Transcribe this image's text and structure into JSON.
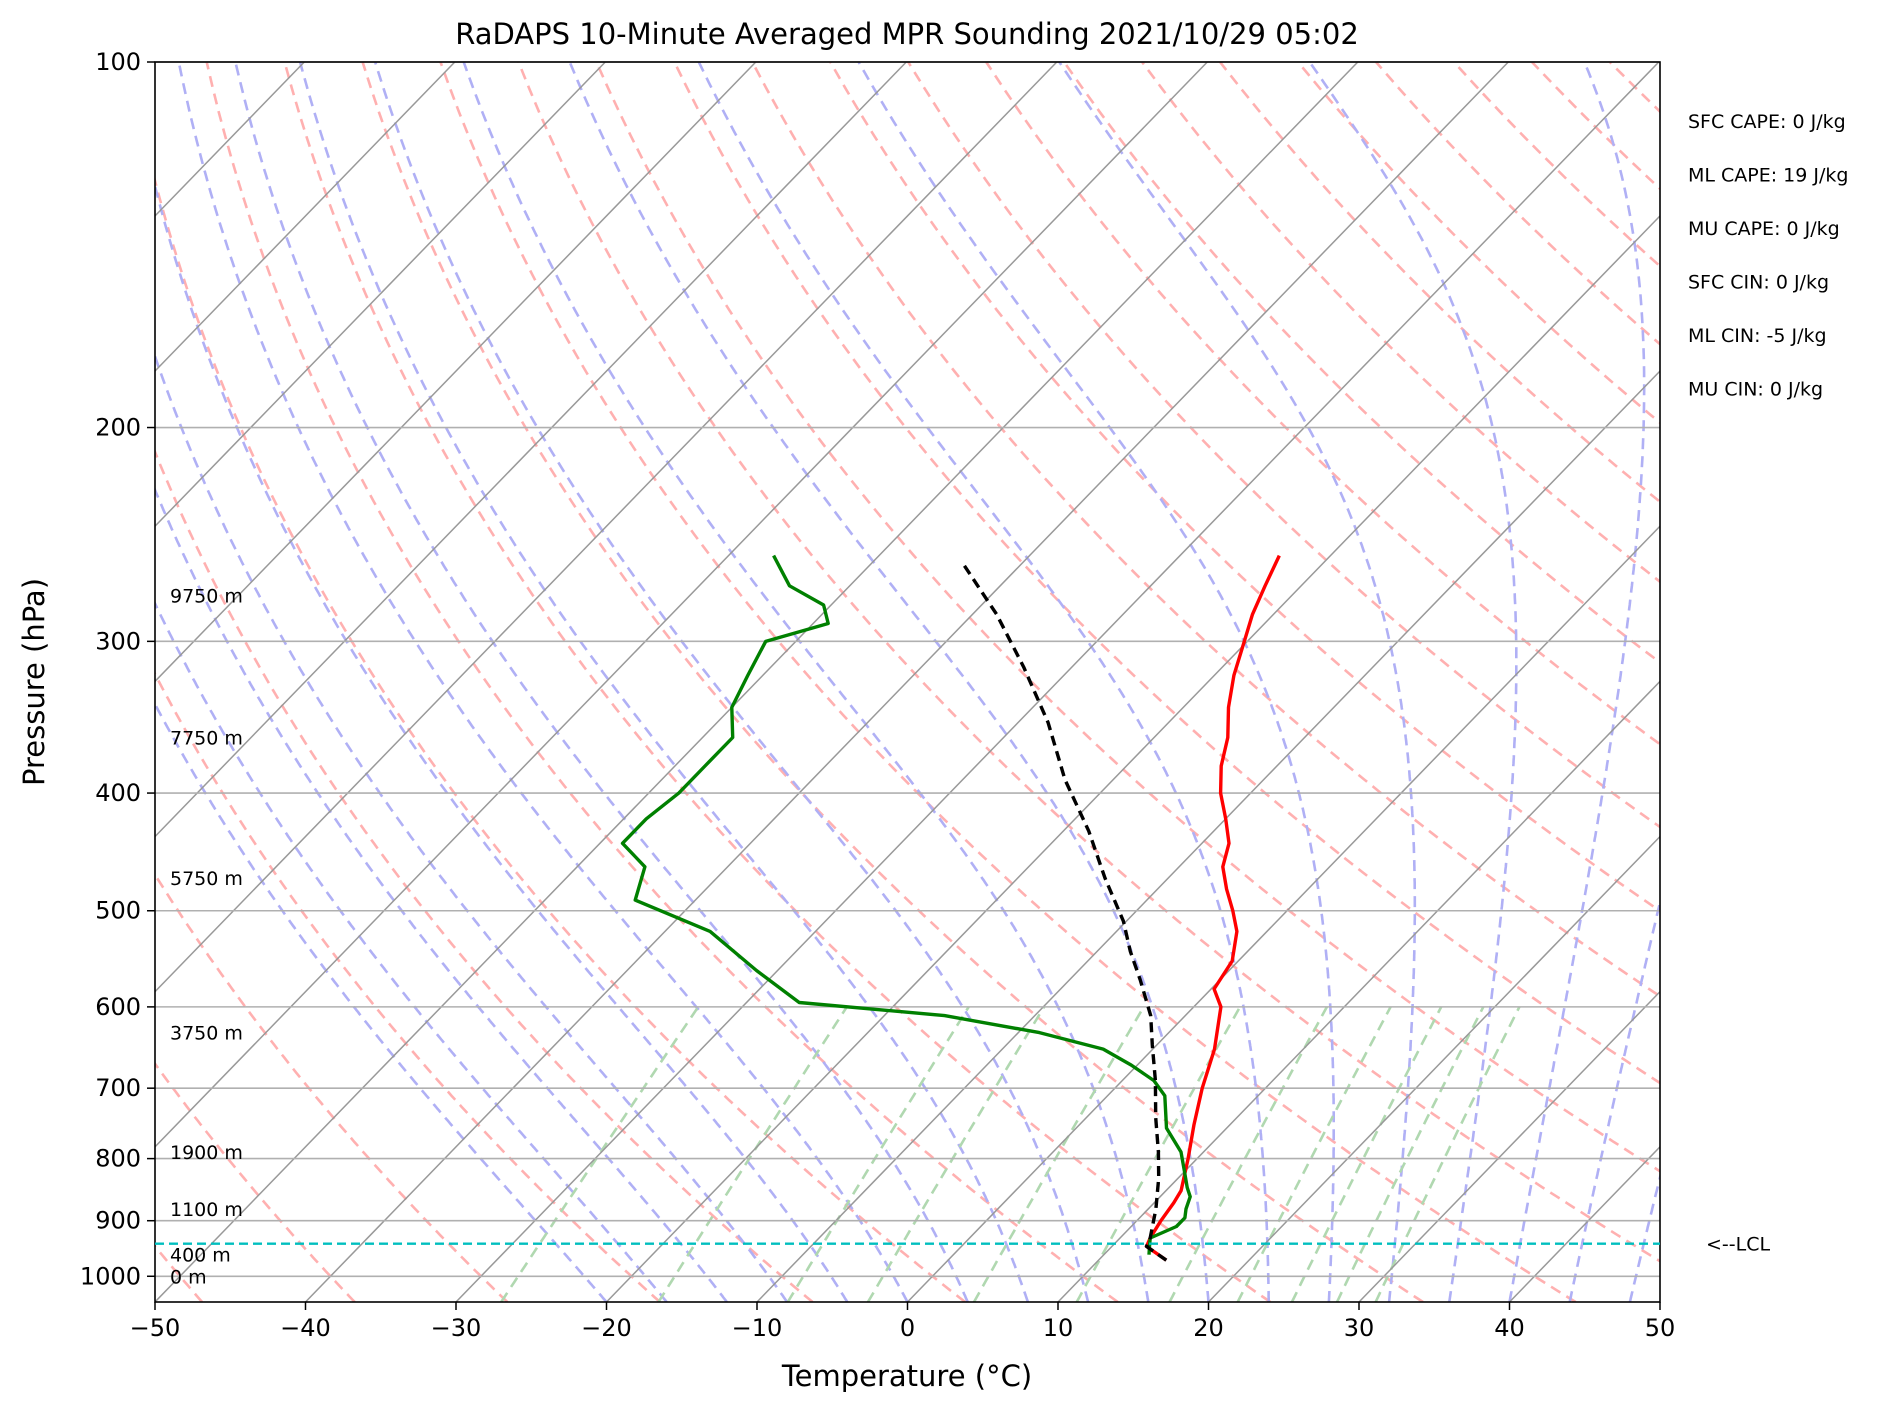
{
  "chart_data": {
    "type": "line",
    "title": "RaDAPS 10-Minute Averaged MPR Sounding 2021/10/29 05:02",
    "xlabel": "Temperature (°C)",
    "ylabel": "Pressure (hPa)",
    "xlim": [
      -50,
      50
    ],
    "ylim": [
      1050,
      100
    ],
    "y_scale": "log",
    "grid": true,
    "x_ticks": [
      -50,
      -40,
      -30,
      -20,
      -10,
      0,
      10,
      20,
      30,
      40,
      50
    ],
    "x_tick_labels": [
      "−50",
      "−40",
      "−30",
      "−20",
      "−10",
      "0",
      "10",
      "20",
      "30",
      "40",
      "50"
    ],
    "y_ticks": [
      100,
      200,
      300,
      400,
      500,
      600,
      700,
      800,
      900,
      1000
    ],
    "y_tick_labels": [
      "100",
      "200",
      "300",
      "400",
      "500",
      "600",
      "700",
      "800",
      "900",
      "1000"
    ],
    "series": [
      {
        "color": "#ff0000",
        "points": [
          [
            14.5,
            970
          ],
          [
            12.3,
            945
          ],
          [
            12,
            930
          ],
          [
            11.6,
            900
          ],
          [
            11.3,
            870
          ],
          [
            11,
            850
          ],
          [
            9.4,
            800
          ],
          [
            7.6,
            750
          ],
          [
            5.8,
            700
          ],
          [
            4.1,
            650
          ],
          [
            1.8,
            600
          ],
          [
            0.2,
            580
          ],
          [
            -0.4,
            550
          ],
          [
            -2,
            520
          ],
          [
            -3.6,
            500
          ],
          [
            -5.4,
            480
          ],
          [
            -7.1,
            460
          ],
          [
            -8.2,
            440
          ],
          [
            -10,
            420
          ],
          [
            -12,
            400
          ],
          [
            -13.7,
            380
          ],
          [
            -15.1,
            360
          ],
          [
            -17,
            340
          ],
          [
            -18.7,
            320
          ],
          [
            -20.2,
            300
          ],
          [
            -21.4,
            285
          ],
          [
            -22.4,
            270
          ],
          [
            -23.4,
            255
          ]
        ]
      },
      {
        "color": "#008000",
        "points": [
          [
            13,
            960
          ],
          [
            12.5,
            945
          ],
          [
            12,
            930
          ],
          [
            13,
            910
          ],
          [
            13,
            895
          ],
          [
            12.5,
            880
          ],
          [
            12,
            860
          ],
          [
            11.2,
            845
          ],
          [
            10,
            820
          ],
          [
            8.5,
            790
          ],
          [
            6,
            755
          ],
          [
            3.8,
            710
          ],
          [
            2.1,
            690
          ],
          [
            -0.4,
            670
          ],
          [
            -3.3,
            650
          ],
          [
            -8.6,
            630
          ],
          [
            -16,
            610
          ],
          [
            -26.5,
            595
          ],
          [
            -31.4,
            560
          ],
          [
            -37,
            520
          ],
          [
            -44,
            490
          ],
          [
            -45.5,
            460
          ],
          [
            -48.5,
            440
          ],
          [
            -48.5,
            420
          ],
          [
            -48,
            400
          ],
          [
            -48,
            380
          ],
          [
            -48,
            360
          ],
          [
            -50,
            340
          ],
          [
            -51,
            320
          ],
          [
            -52,
            300
          ],
          [
            -49,
            290
          ],
          [
            -50.5,
            280
          ],
          [
            -54,
            270
          ],
          [
            -57,
            255
          ]
        ]
      },
      {
        "color": "#000000",
        "dashed": true,
        "points": [
          [
            14.5,
            970
          ],
          [
            12.3,
            945
          ],
          [
            12,
            930
          ],
          [
            10.5,
            880
          ],
          [
            8.7,
            830
          ],
          [
            7,
            790
          ],
          [
            4.6,
            740
          ],
          [
            2.2,
            690
          ],
          [
            -0.3,
            645
          ],
          [
            -2.3,
            610
          ],
          [
            -5.3,
            570
          ],
          [
            -7.8,
            540
          ],
          [
            -10.2,
            510
          ],
          [
            -14.2,
            470
          ],
          [
            -18.3,
            430
          ],
          [
            -23.2,
            390
          ],
          [
            -28,
            350
          ],
          [
            -33.2,
            315
          ],
          [
            -38.4,
            285
          ],
          [
            -44.1,
            258
          ]
        ]
      }
    ],
    "lcl": {
      "pressure": 940,
      "label": "<--LCL",
      "color": "#00bfbf"
    },
    "height_labels": [
      {
        "text": "9750 m",
        "pressure": 275
      },
      {
        "text": "7750 m",
        "pressure": 360
      },
      {
        "text": "5750 m",
        "pressure": 470
      },
      {
        "text": "3750 m",
        "pressure": 630
      },
      {
        "text": "1900 m",
        "pressure": 790
      },
      {
        "text": "1100 m",
        "pressure": 880
      },
      {
        "text": "400 m",
        "pressure": 960
      },
      {
        "text": "0 m",
        "pressure": 1000
      }
    ],
    "stats": [
      "SFC CAPE: 0 J/kg",
      "ML CAPE: 19 J/kg",
      "MU CAPE: 0 J/kg",
      "SFC CIN: 0 J/kg",
      "ML CIN: -5 J/kg",
      "MU CIN: 0 J/kg"
    ],
    "colors": {
      "temperature": "#ff0000",
      "dewpoint": "#008000",
      "parcel": "#000000",
      "isotherm": "#999999",
      "dry_adiabat": "#ffb0b0",
      "moist_adiabat": "#b0b0f5",
      "mixing_ratio": "#b0d8b0",
      "lcl": "#00bfbf"
    }
  }
}
